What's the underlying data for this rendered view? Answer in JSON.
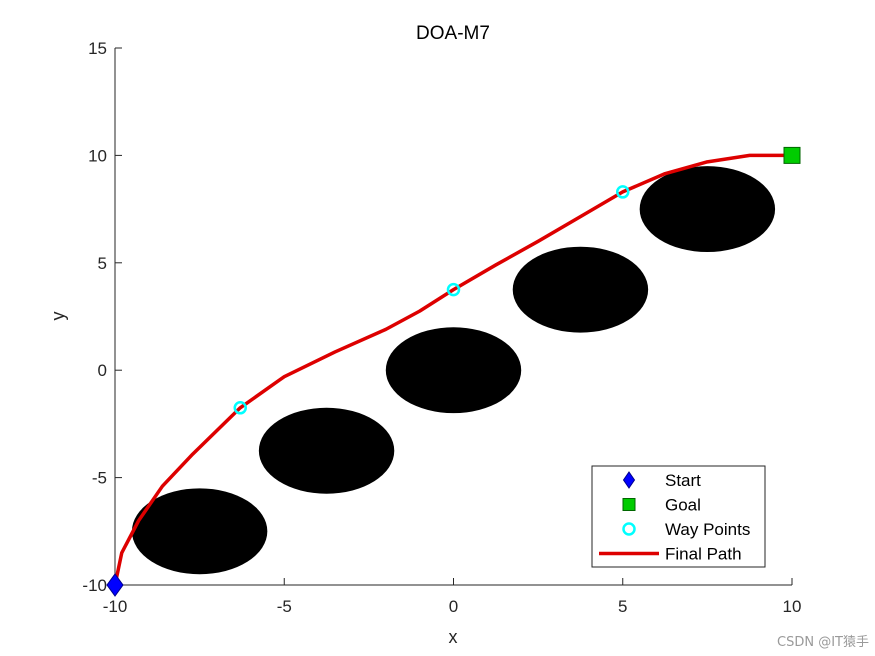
{
  "chart_data": {
    "type": "scatter",
    "title": "DOA-M7",
    "xlabel": "x",
    "ylabel": "y",
    "xlim": [
      -10,
      10
    ],
    "ylim": [
      -10,
      15
    ],
    "xticks": [
      "-10",
      "-5",
      "0",
      "5",
      "10"
    ],
    "yticks": [
      "-10",
      "-5",
      "0",
      "5",
      "10",
      "15"
    ],
    "legend_position": "bottom-right",
    "obstacles": [
      {
        "cx": -7.5,
        "cy": -7.5,
        "r": 2
      },
      {
        "cx": -3.75,
        "cy": -3.75,
        "r": 2
      },
      {
        "cx": 0,
        "cy": 0,
        "r": 2
      },
      {
        "cx": 3.75,
        "cy": 3.75,
        "r": 2
      },
      {
        "cx": 7.5,
        "cy": 7.5,
        "r": 2
      }
    ],
    "series": [
      {
        "name": "Start",
        "marker": "diamond",
        "color": "#0000ff",
        "points": [
          [
            -10,
            -10
          ]
        ]
      },
      {
        "name": "Goal",
        "marker": "square",
        "color": "#00cc00",
        "points": [
          [
            10,
            10
          ]
        ]
      },
      {
        "name": "Way Points",
        "marker": "circle",
        "color": "#00ffff",
        "points": [
          [
            -6.3,
            -1.75
          ],
          [
            0,
            3.75
          ],
          [
            5,
            8.3
          ]
        ]
      },
      {
        "name": "Final Path",
        "marker": "line",
        "color": "#dd0000",
        "points": [
          [
            -10,
            -10
          ],
          [
            -9.8,
            -8.5
          ],
          [
            -9.3,
            -7.0
          ],
          [
            -8.6,
            -5.4
          ],
          [
            -7.7,
            -3.9
          ],
          [
            -6.3,
            -1.75
          ],
          [
            -5.0,
            -0.3
          ],
          [
            -3.5,
            0.85
          ],
          [
            -2.0,
            1.9
          ],
          [
            -1.0,
            2.75
          ],
          [
            0,
            3.75
          ],
          [
            1.25,
            4.9
          ],
          [
            2.5,
            6.0
          ],
          [
            3.75,
            7.15
          ],
          [
            5.0,
            8.3
          ],
          [
            6.25,
            9.15
          ],
          [
            7.5,
            9.7
          ],
          [
            8.75,
            10.0
          ],
          [
            10,
            10
          ]
        ]
      }
    ]
  },
  "watermark": "CSDN @IT猿手"
}
